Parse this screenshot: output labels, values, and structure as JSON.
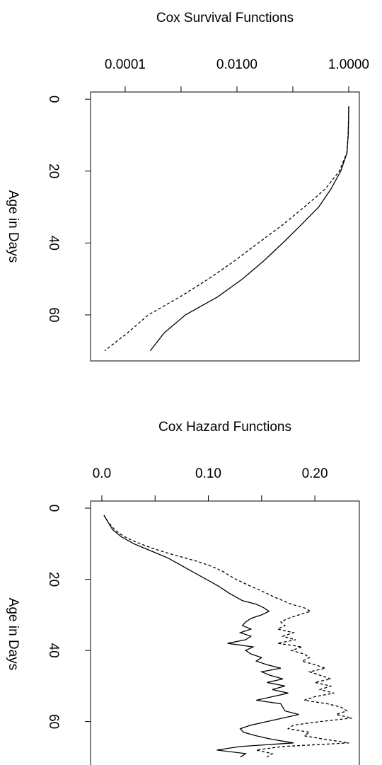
{
  "chart_data": [
    {
      "type": "line",
      "title": "Cox Survival Functions",
      "ylabel": "Age in Days",
      "xscale": "log",
      "x": [
        2,
        5,
        10,
        15,
        20,
        25,
        30,
        35,
        40,
        45,
        50,
        55,
        60,
        65,
        70
      ],
      "series": [
        {
          "color": "#000000",
          "dash": false,
          "values": [
            1.0,
            0.995,
            0.98,
            0.93,
            0.72,
            0.48,
            0.29,
            0.14,
            0.066,
            0.03,
            0.0126,
            0.0045,
            0.0012,
            0.0005,
            0.00028
          ]
        },
        {
          "color": "#000000",
          "dash": true,
          "values": [
            1.0,
            0.995,
            0.975,
            0.92,
            0.68,
            0.38,
            0.16,
            0.065,
            0.024,
            0.009,
            0.0031,
            0.00095,
            0.00026,
            0.00011,
            4.3e-05
          ]
        }
      ],
      "xlim": [
        2.4e-05,
        1.55
      ],
      "xticks": [
        {
          "value": 0.0001,
          "label": "0.0001"
        },
        {
          "value": 0.001,
          "label": null
        },
        {
          "value": 0.01,
          "label": "0.0100"
        },
        {
          "value": 0.1,
          "label": null
        },
        {
          "value": 1,
          "label": "1.0000"
        }
      ],
      "ylim": [
        -2,
        72.8
      ],
      "yticks": [
        0,
        20,
        40,
        60
      ]
    },
    {
      "type": "line",
      "title": "Cox Hazard Functions",
      "ylabel": "Age in Days",
      "xscale": "linear",
      "x": [
        2,
        3,
        4,
        5,
        6,
        7,
        8,
        9,
        10,
        11,
        12,
        13,
        14,
        15,
        16,
        17,
        18,
        19,
        20,
        21,
        22,
        23,
        24,
        25,
        26,
        27,
        28,
        29,
        30,
        31,
        32,
        33,
        34,
        35,
        36,
        37,
        38,
        39,
        40,
        41,
        42,
        43,
        44,
        45,
        46,
        47,
        48,
        49,
        50,
        51,
        52,
        53,
        54,
        55,
        56,
        57,
        58,
        59,
        60,
        61,
        62,
        63,
        64,
        65,
        66,
        67,
        68,
        69,
        70
      ],
      "series": [
        {
          "color": "#000000",
          "dash": false,
          "values": [
            0.002,
            0.004,
            0.006,
            0.008,
            0.01,
            0.014,
            0.018,
            0.024,
            0.03,
            0.038,
            0.046,
            0.054,
            0.062,
            0.068,
            0.074,
            0.08,
            0.086,
            0.092,
            0.098,
            0.104,
            0.11,
            0.115,
            0.12,
            0.126,
            0.132,
            0.145,
            0.152,
            0.157,
            0.15,
            0.14,
            0.135,
            0.132,
            0.14,
            0.13,
            0.14,
            0.135,
            0.118,
            0.142,
            0.135,
            0.14,
            0.15,
            0.145,
            0.155,
            0.168,
            0.15,
            0.158,
            0.17,
            0.155,
            0.172,
            0.16,
            0.175,
            0.16,
            0.145,
            0.168,
            0.17,
            0.172,
            0.185,
            0.17,
            0.155,
            0.14,
            0.13,
            0.133,
            0.145,
            0.16,
            0.18,
            0.13,
            0.108,
            0.135,
            0.13
          ]
        },
        {
          "color": "#000000",
          "dash": true,
          "values": [
            0.002,
            0.004,
            0.006,
            0.009,
            0.012,
            0.016,
            0.021,
            0.028,
            0.036,
            0.045,
            0.055,
            0.066,
            0.078,
            0.09,
            0.1,
            0.108,
            0.115,
            0.12,
            0.126,
            0.133,
            0.14,
            0.148,
            0.155,
            0.162,
            0.17,
            0.178,
            0.19,
            0.196,
            0.185,
            0.175,
            0.168,
            0.172,
            0.165,
            0.18,
            0.17,
            0.182,
            0.165,
            0.188,
            0.178,
            0.19,
            0.195,
            0.188,
            0.2,
            0.21,
            0.195,
            0.205,
            0.215,
            0.2,
            0.215,
            0.205,
            0.218,
            0.2,
            0.19,
            0.212,
            0.225,
            0.23,
            0.22,
            0.235,
            0.205,
            0.18,
            0.175,
            0.195,
            0.19,
            0.21,
            0.232,
            0.17,
            0.145,
            0.16,
            0.155
          ]
        }
      ],
      "xlim": [
        -0.0106,
        0.2418
      ],
      "xticks": [
        {
          "value": 0,
          "label": "0.0"
        },
        {
          "value": 0.05,
          "label": null
        },
        {
          "value": 0.1,
          "label": "0.10"
        },
        {
          "value": 0.15,
          "label": null
        },
        {
          "value": 0.2,
          "label": "0.20"
        }
      ],
      "ylim": [
        -2,
        72.8
      ],
      "yticks": [
        0,
        20,
        40,
        60
      ]
    }
  ]
}
